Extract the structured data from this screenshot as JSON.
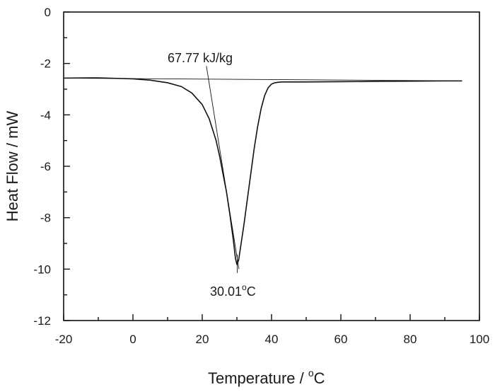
{
  "chart_data": {
    "type": "line",
    "title": "",
    "xlabel": "Temperature / °C",
    "xlabel_text": "Temperature / ",
    "xlabel_unit_sup": "o",
    "xlabel_unit": "C",
    "ylabel": "Heat Flow / mW",
    "xlim": [
      -20,
      100
    ],
    "ylim": [
      -12,
      0
    ],
    "xticks": [
      -20,
      0,
      20,
      40,
      60,
      80,
      100
    ],
    "yticks": [
      0,
      -2,
      -4,
      -6,
      -8,
      -10,
      -12
    ],
    "xtick_labels": [
      "-20",
      "0",
      "20",
      "40",
      "60",
      "80",
      "100"
    ],
    "ytick_labels": [
      "0",
      "-2",
      "-4",
      "-6",
      "-8",
      "-10",
      "-12"
    ],
    "grid": false,
    "legend": "none",
    "series": [
      {
        "x": [
          -20,
          -10,
          0,
          5,
          10,
          14,
          17,
          20,
          22,
          24,
          25,
          26,
          27,
          28,
          29,
          29.6,
          30.01,
          30.5,
          31,
          32,
          33,
          34,
          35,
          36,
          37,
          38,
          39,
          40,
          41,
          42,
          43,
          45,
          50,
          60,
          70,
          80,
          90,
          95
        ],
        "y": [
          -2.57,
          -2.56,
          -2.6,
          -2.65,
          -2.75,
          -2.9,
          -3.15,
          -3.6,
          -4.15,
          -5.0,
          -5.6,
          -6.3,
          -7.0,
          -7.9,
          -8.9,
          -9.6,
          -9.82,
          -9.65,
          -9.2,
          -8.3,
          -7.3,
          -6.3,
          -5.3,
          -4.45,
          -3.75,
          -3.25,
          -2.95,
          -2.8,
          -2.75,
          -2.73,
          -2.72,
          -2.72,
          -2.72,
          -2.71,
          -2.7,
          -2.69,
          -2.68,
          -2.68
        ]
      }
    ],
    "baseline": {
      "x": [
        -20,
        95
      ],
      "y": [
        -2.57,
        -2.68
      ]
    },
    "tangent": {
      "x": [
        21.2,
        30.6
      ],
      "y": [
        -2.1,
        -10.0
      ]
    },
    "annotations": [
      {
        "text": "67.77 kJ/kg"
      },
      {
        "text_value": "30.01",
        "text_unit_sup": "o",
        "text_unit": "C",
        "text": "30.01°C"
      }
    ],
    "peak": {
      "x": 30.01,
      "y": -9.82
    }
  }
}
